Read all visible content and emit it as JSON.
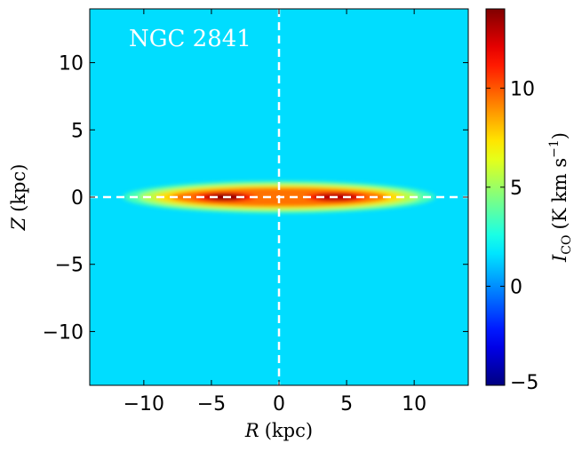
{
  "chart_data": {
    "type": "heatmap",
    "galaxy_label": "NGC 2841",
    "xlabel": {
      "symbol": "R",
      "unit": "(kpc)"
    },
    "ylabel": {
      "symbol": "Z",
      "unit": "(kpc)"
    },
    "xlim": [
      -14,
      14
    ],
    "ylim": [
      -14,
      14
    ],
    "xticks": [
      -10,
      -5,
      0,
      5,
      10
    ],
    "xtick_labels": [
      "−10",
      "−5",
      "0",
      "5",
      "10"
    ],
    "yticks": [
      10,
      5,
      0,
      -5,
      -10
    ],
    "ytick_labels": [
      "10",
      "5",
      "0",
      "−5",
      "−10"
    ],
    "colorbar": {
      "label": {
        "symbol": "I",
        "subscript": "CO",
        "unit_main": "(K km s",
        "unit_exp": "−1",
        "unit_close": ")"
      },
      "range": [
        -5,
        14
      ],
      "ticks": [
        10,
        5,
        0,
        -5
      ],
      "tick_labels": [
        "10",
        "5",
        "0",
        "−5"
      ],
      "colormap": "jet"
    },
    "background_value": 1.5,
    "emission": {
      "description_R_extent_kpc": [
        -11.5,
        11.5
      ],
      "Z_thickness_kpc": 1.2,
      "peaks": [
        {
          "R": -4.0,
          "Z": 0.0,
          "value": 14
        },
        {
          "R": 4.2,
          "Z": 0.0,
          "value": 13
        }
      ]
    },
    "guide_lines": [
      {
        "orientation": "vertical",
        "at": 0,
        "style": "dashed",
        "color": "#ffffff"
      },
      {
        "orientation": "horizontal",
        "at": 0,
        "style": "dashed",
        "color": "#ffffff"
      }
    ]
  }
}
